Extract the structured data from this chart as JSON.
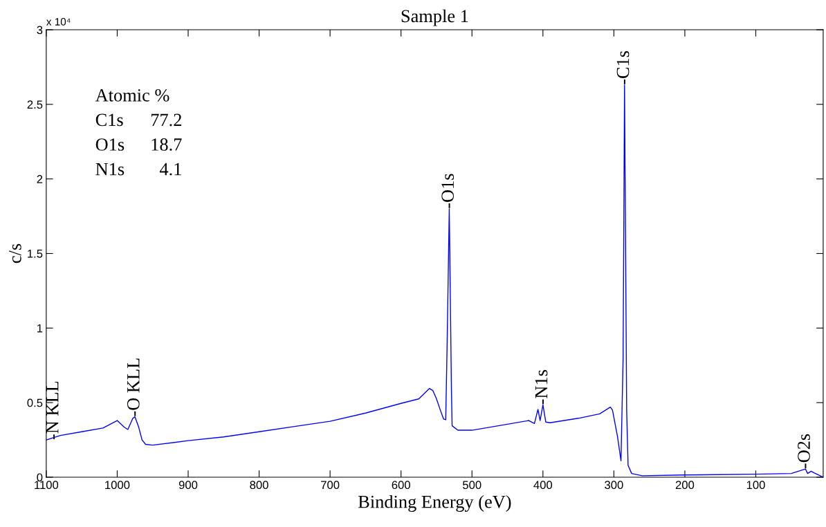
{
  "chart_data": {
    "type": "line",
    "title": "Sample 1",
    "xlabel": "Binding Energy (eV)",
    "ylabel": "c/s",
    "x": [
      1100,
      1080,
      1050,
      1020,
      1000,
      990,
      985,
      978,
      975,
      970,
      965,
      960,
      950,
      900,
      850,
      800,
      750,
      700,
      650,
      600,
      575,
      560,
      555,
      550,
      545,
      540,
      537,
      535,
      532,
      529,
      528,
      520,
      500,
      450,
      420,
      412,
      407,
      404,
      400,
      396,
      390,
      350,
      320,
      305,
      302,
      295,
      290,
      287,
      285,
      282,
      280,
      275,
      260,
      200,
      100,
      50,
      30,
      27,
      22,
      18,
      5
    ],
    "series": [
      {
        "color": "#0000ff",
        "values": [
          0.25,
          0.28,
          0.305,
          0.33,
          0.38,
          0.335,
          0.32,
          0.395,
          0.405,
          0.34,
          0.25,
          0.22,
          0.215,
          0.245,
          0.27,
          0.305,
          0.34,
          0.375,
          0.43,
          0.495,
          0.525,
          0.595,
          0.58,
          0.525,
          0.455,
          0.39,
          0.385,
          0.9,
          1.8,
          0.6,
          0.345,
          0.315,
          0.315,
          0.355,
          0.38,
          0.36,
          0.455,
          0.38,
          0.485,
          0.37,
          0.365,
          0.395,
          0.425,
          0.47,
          0.45,
          0.275,
          0.11,
          0.8,
          2.63,
          0.45,
          0.08,
          0.025,
          0.01,
          0.015,
          0.02,
          0.025,
          0.055,
          0.025,
          0.04,
          0.03,
          0
        ]
      }
    ],
    "xlim": [
      1100,
      5
    ],
    "xticks": [
      1100,
      1000,
      900,
      800,
      700,
      600,
      500,
      400,
      300,
      200,
      100
    ],
    "ylim": [
      0,
      3
    ],
    "yticks": [
      0,
      0.5,
      1,
      1.5,
      2,
      2.5,
      3
    ],
    "grid": false,
    "marker": "none",
    "line_style": "solid",
    "annotations": [
      {
        "text": "-C1s",
        "x": 285,
        "y": 2.63
      },
      {
        "text": "-O1s",
        "x": 532,
        "y": 1.8
      },
      {
        "text": "-N1s",
        "x": 400,
        "y": 0.485
      },
      {
        "text": "-O KLL",
        "x": 975,
        "y": 0.405
      },
      {
        "text": "-N KLL",
        "x": 1100,
        "y": 0.25
      },
      {
        "text": "-O2s",
        "x": 30,
        "y": 0.055
      },
      "x 10⁴",
      "Atomic %",
      "C1s 77.2",
      "O1s 18.7",
      "N1s 4.1"
    ]
  }
}
